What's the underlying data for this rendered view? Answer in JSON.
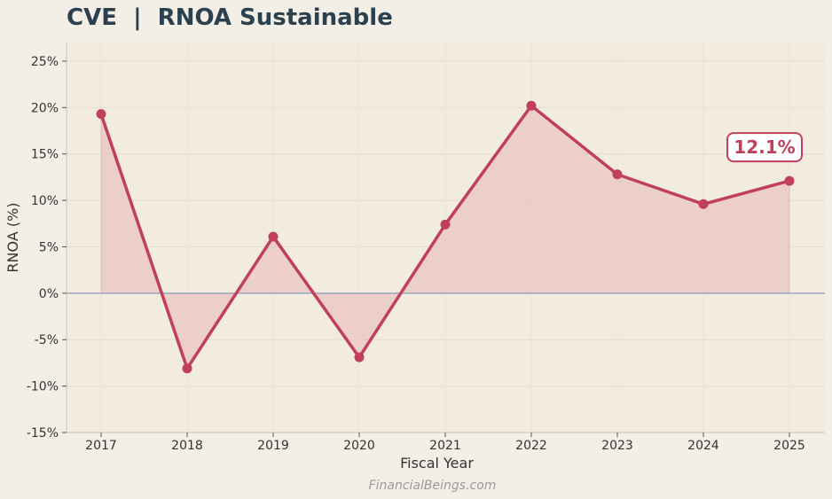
{
  "chart_data": {
    "type": "line",
    "title": "CVE  |  RNOA Sustainable",
    "xlabel": "Fiscal Year",
    "ylabel": "RNOA (%)",
    "categories": [
      "2017",
      "2018",
      "2019",
      "2020",
      "2021",
      "2022",
      "2023",
      "2024",
      "2025"
    ],
    "series": [
      {
        "values": [
          19.3,
          -8.1,
          6.1,
          -6.9,
          7.4,
          20.2,
          12.8,
          9.6,
          12.1
        ]
      }
    ],
    "ylim": [
      -15,
      27
    ],
    "yticks": [
      -15,
      -10,
      -5,
      0,
      5,
      10,
      15,
      20,
      25
    ],
    "ytick_labels": [
      "-15%",
      "-10%",
      "-5%",
      "0%",
      "5%",
      "10%",
      "15%",
      "20%",
      "25%"
    ],
    "grid": true,
    "fill_to_zero": true,
    "callout": {
      "category": "2025",
      "text": "12.1%"
    },
    "colors": {
      "line": "#c0405a",
      "fill": "#e8b8b8",
      "zero_line": "#9aa9b8",
      "plot_bg": "#f1ebe0",
      "title": "#2c4150"
    }
  },
  "watermark": "FinancialBeings.com"
}
